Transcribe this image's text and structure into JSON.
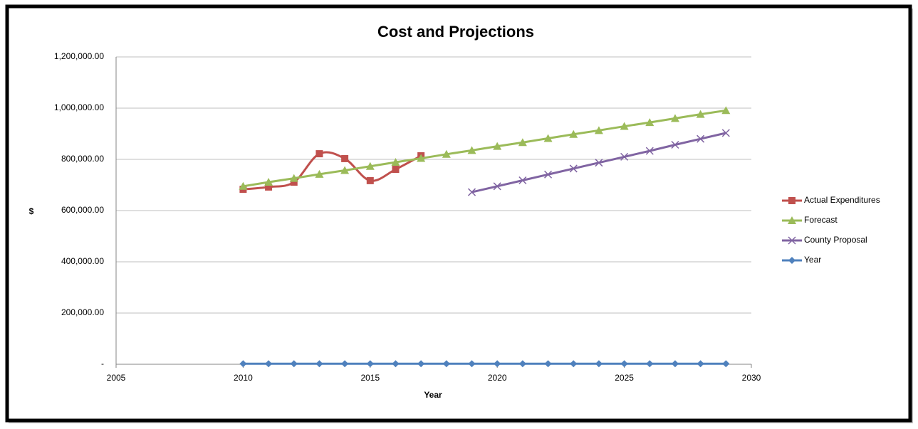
{
  "chart_data": {
    "type": "line",
    "title": "Cost and Projections",
    "x_label": "Year",
    "y_label": "$",
    "x": [
      2010,
      2011,
      2012,
      2013,
      2014,
      2015,
      2016,
      2017,
      2018,
      2019,
      2020,
      2021,
      2022,
      2023,
      2024,
      2025,
      2026,
      2027,
      2028,
      2029
    ],
    "series": [
      {
        "name": "Actual Expenditures",
        "color": "#c0504d",
        "marker": "square",
        "smooth": true,
        "values": [
          683000,
          692000,
          711000,
          822000,
          803000,
          717000,
          761000,
          814000,
          null,
          null,
          null,
          null,
          null,
          null,
          null,
          null,
          null,
          null,
          null,
          null
        ]
      },
      {
        "name": "Forecast",
        "color": "#9bbb59",
        "marker": "triangle",
        "smooth": false,
        "values": [
          695000,
          711000,
          726000,
          742000,
          757000,
          773000,
          789000,
          804000,
          820000,
          835000,
          851000,
          866000,
          882000,
          898000,
          913000,
          929000,
          944000,
          960000,
          976000,
          991000
        ]
      },
      {
        "name": "County Proposal",
        "color": "#8064a2",
        "marker": "x",
        "smooth": false,
        "values": [
          null,
          null,
          null,
          null,
          null,
          null,
          null,
          null,
          null,
          672000,
          695000,
          718000,
          741000,
          764000,
          787000,
          810000,
          833000,
          857000,
          880000,
          903000
        ]
      },
      {
        "name": "Year",
        "color": "#4f81bd",
        "marker": "diamond",
        "smooth": false,
        "values": [
          2010,
          2011,
          2012,
          2013,
          2014,
          2015,
          2016,
          2017,
          2018,
          2019,
          2020,
          2021,
          2022,
          2023,
          2024,
          2025,
          2026,
          2027,
          2028,
          2029
        ]
      }
    ],
    "xlim": [
      2005,
      2030
    ],
    "xticks": [
      2005,
      2010,
      2015,
      2020,
      2025,
      2030
    ],
    "ylim": [
      0,
      1200000
    ],
    "yticks": [
      {
        "value": 0,
        "label": "-"
      },
      {
        "value": 200000,
        "label": "200,000.00"
      },
      {
        "value": 400000,
        "label": "400,000.00"
      },
      {
        "value": 600000,
        "label": "600,000.00"
      },
      {
        "value": 800000,
        "label": "800,000.00"
      },
      {
        "value": 1000000,
        "label": "1,000,000.00"
      },
      {
        "value": 1200000,
        "label": "1,200,000.00"
      }
    ],
    "grid": true,
    "legend": "right"
  }
}
